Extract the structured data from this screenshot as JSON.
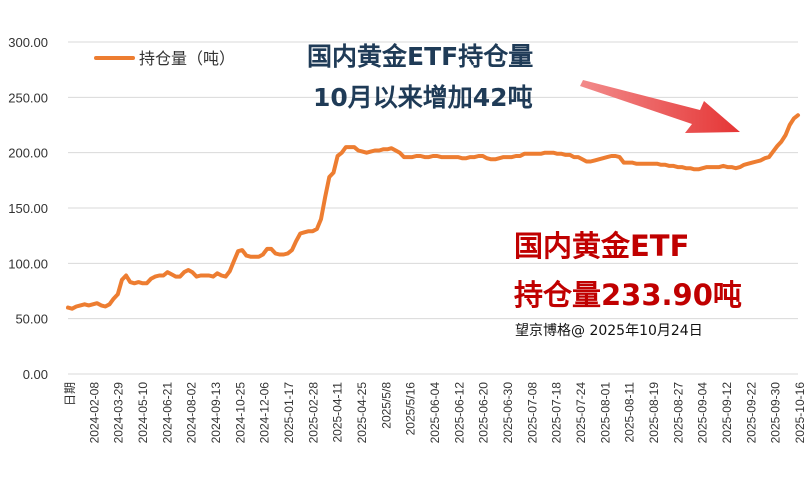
{
  "chart_data": {
    "type": "line",
    "title": "",
    "xlabel": "",
    "ylabel": "",
    "ylim": [
      0,
      300
    ],
    "yticks": [
      "0.00",
      "50.00",
      "100.00",
      "150.00",
      "200.00",
      "250.00",
      "300.00"
    ],
    "grid": true,
    "legend_position": "top-left",
    "x_first_label": "日期",
    "x_tick_labels": [
      "2024-02-08",
      "2024-03-29",
      "2024-05-10",
      "2024-06-21",
      "2024-08-02",
      "2024-09-13",
      "2024-10-25",
      "2024-12-06",
      "2025-01-17",
      "2025-02-28",
      "2025-04-11",
      "2025-04-25",
      "2025/5/8",
      "2025/5/16",
      "2025-06-04",
      "2025-06-12",
      "2025-06-20",
      "2025-06-30",
      "2025-07-08",
      "2025-07-18",
      "2025-07-24",
      "2025-08-01",
      "2025-08-11",
      "2025-08-19",
      "2025-08-27",
      "2025-09-04",
      "2025-09-12",
      "2025-09-22",
      "2025-09-30",
      "2025-10-16"
    ],
    "series": [
      {
        "name": "持仓量（吨）",
        "color": "#ed7d31",
        "values": [
          60,
          59,
          61,
          62,
          63,
          62,
          63,
          64,
          62,
          61,
          63,
          68,
          72,
          85,
          89,
          83,
          82,
          83,
          82,
          82,
          86,
          88,
          89,
          89,
          92,
          90,
          88,
          88,
          92,
          94,
          92,
          88,
          89,
          89,
          89,
          88,
          91,
          89,
          88,
          93,
          102,
          111,
          112,
          107,
          106,
          106,
          106,
          108,
          113,
          113,
          109,
          108,
          108,
          109,
          112,
          120,
          127,
          128,
          129,
          129,
          131,
          140,
          160,
          178,
          182,
          197,
          200,
          205,
          205,
          205,
          202,
          201,
          200,
          201,
          202,
          202,
          203,
          203,
          204,
          202,
          200,
          196,
          196,
          196,
          197,
          197,
          196,
          196,
          197,
          197,
          196,
          196,
          196,
          196,
          196,
          195,
          195,
          196,
          196,
          197,
          197,
          195,
          194,
          194,
          195,
          196,
          196,
          196,
          197,
          197,
          199,
          199,
          199,
          199,
          199,
          200,
          200,
          200,
          199,
          199,
          198,
          198,
          196,
          196,
          194,
          192,
          192,
          193,
          194,
          195,
          196,
          197,
          197,
          196,
          191,
          191,
          191,
          190,
          190,
          190,
          190,
          190,
          190,
          189,
          189,
          188,
          188,
          187,
          187,
          186,
          186,
          185,
          185,
          186,
          187,
          187,
          187,
          187,
          188,
          187,
          187,
          186,
          187,
          189,
          190,
          191,
          192,
          193,
          195,
          196,
          201,
          206,
          210,
          216,
          225,
          231,
          233.9
        ]
      }
    ],
    "annotations": {
      "top_line1": "国内黄金ETF持仓量",
      "top_line2": "10月以来增加42吨",
      "mid_line1": "国内黄金ETF",
      "mid_line2": "持仓量233.90吨",
      "source": "望京博格@ 2025年10月24日"
    }
  }
}
